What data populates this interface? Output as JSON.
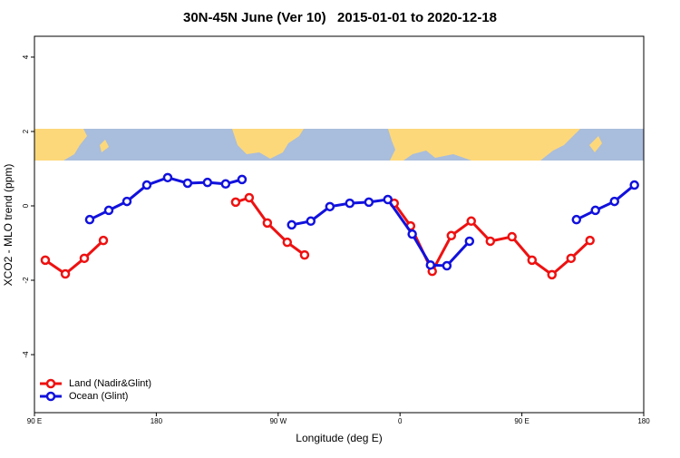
{
  "chart_data": {
    "type": "line",
    "title": "30N-45N June (Ver 10)   2015-01-01 to 2020-12-18",
    "x_label": "Longitude (deg E)",
    "y_label": "XCO2 - MLO trend (ppm)",
    "xlim": [
      90,
      540
    ],
    "xticks": [
      {
        "value": 90,
        "label": "90 E"
      },
      180,
      {
        "value": 270,
        "label": "90 W"
      },
      {
        "value": 360,
        "label": "0"
      },
      {
        "value": 450,
        "label": "90 E"
      },
      {
        "value": 540,
        "label": "180"
      }
    ],
    "ylim": [
      -5.56,
      4.56
    ],
    "yticks": [
      -4,
      -2,
      0,
      2,
      4
    ],
    "legend": "bottom-left",
    "series": [
      {
        "name": "Land (Nadir&Glint)",
        "color": "#ee1111",
        "x": [
          98,
          112.8,
          126.8,
          140.9,
          null,
          238.6,
          248.6,
          262,
          276.7,
          289.5,
          null,
          355.7,
          367.8,
          383.8,
          397.9,
          412.6,
          426.7,
          442.7,
          457.5,
          472.2,
          486.3,
          500.3
        ],
        "values": [
          -1.46,
          -1.83,
          -1.41,
          -0.93,
          null,
          0.1,
          0.22,
          -0.46,
          -0.98,
          -1.32,
          null,
          0.07,
          -0.54,
          -1.76,
          -0.8,
          -0.41,
          -0.95,
          -0.83,
          -1.46,
          -1.85,
          -1.41,
          -0.93
        ]
      },
      {
        "name": "Ocean (Glint)",
        "color": "#1111dd",
        "x": [
          130.8,
          144.9,
          158.3,
          173,
          188.4,
          203.1,
          217.8,
          231.2,
          243.3,
          null,
          280,
          294.1,
          308.2,
          322.9,
          337,
          351,
          369,
          382.5,
          394.6,
          411.3,
          null,
          490.3,
          504.3,
          518.4,
          533.1
        ],
        "values": [
          -0.37,
          -0.12,
          0.12,
          0.56,
          0.76,
          0.61,
          0.63,
          0.59,
          0.71,
          null,
          -0.51,
          -0.41,
          -0.02,
          0.07,
          0.1,
          0.17,
          -0.76,
          -1.59,
          -1.61,
          -0.95,
          null,
          -0.37,
          -0.12,
          0.12,
          0.56
        ]
      }
    ]
  }
}
